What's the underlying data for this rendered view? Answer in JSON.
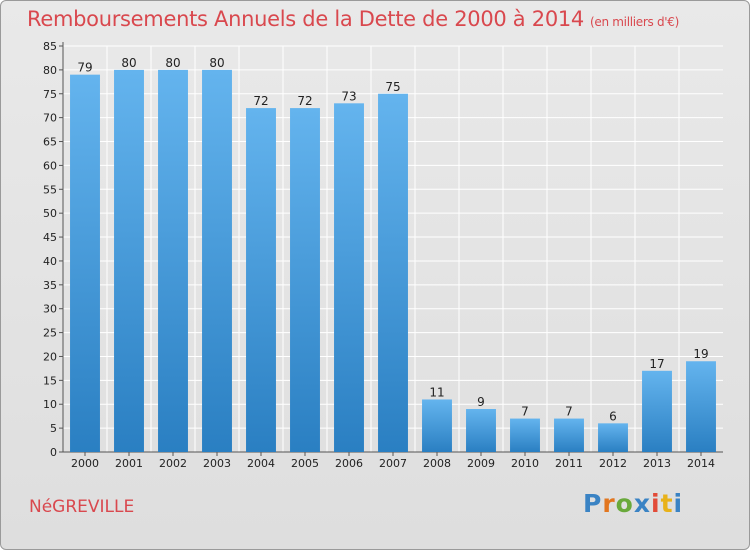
{
  "header": {
    "title": "Remboursements Annuels de la Dette de 2000 à 2014",
    "unit": "(en milliers d'€)"
  },
  "footer": {
    "place": "NéGREVILLE",
    "logo_text": "Proxiti",
    "logo_colors": [
      "#3a83c4",
      "#e2761f",
      "#69a93b",
      "#3a83c4",
      "#e24b38",
      "#e8b21a",
      "#3a83c4"
    ]
  },
  "colors": {
    "bar_top": "#64b4ee",
    "bar_bottom": "#2a7fc2",
    "title": "#d9484e",
    "grid": "#ffffff"
  },
  "chart_data": {
    "type": "bar",
    "categories": [
      "2000",
      "2001",
      "2002",
      "2003",
      "2004",
      "2005",
      "2006",
      "2007",
      "2008",
      "2009",
      "2010",
      "2011",
      "2012",
      "2013",
      "2014"
    ],
    "values": [
      79,
      80,
      80,
      80,
      72,
      72,
      73,
      75,
      11,
      9,
      7,
      7,
      6,
      17,
      19
    ],
    "ylim": [
      0,
      85
    ],
    "yticks": [
      0,
      5,
      10,
      15,
      20,
      25,
      30,
      35,
      40,
      45,
      50,
      55,
      60,
      65,
      70,
      75,
      80,
      85
    ],
    "grid": true,
    "title": "Remboursements Annuels de la Dette de 2000 à 2014",
    "xlabel": "",
    "ylabel": ""
  }
}
